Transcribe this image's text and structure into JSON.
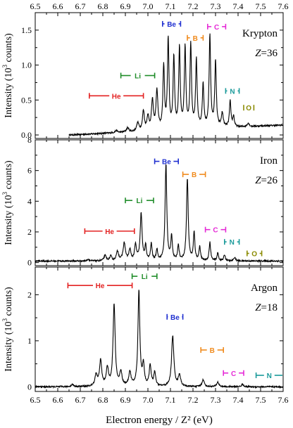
{
  "chart_data": {
    "type": "line",
    "xlabel": "Electron energy / Z² (eV)",
    "ylabel_parts": [
      "Intensity (10",
      "3",
      " counts)"
    ],
    "xlim": [
      6.5,
      7.6
    ],
    "x_ticks": [
      "6.5",
      "6.6",
      "6.7",
      "6.8",
      "6.9",
      "7.0",
      "7.1",
      "7.2",
      "7.3",
      "7.4",
      "7.5",
      "7.6"
    ],
    "x_tick_values": [
      6.5,
      6.6,
      6.7,
      6.8,
      6.9,
      7.0,
      7.1,
      7.2,
      7.3,
      7.4,
      7.5,
      7.6
    ],
    "colors": {
      "He": "#e32222",
      "Li": "#1e8c28",
      "Be": "#1f2fd0",
      "B": "#f08a1c",
      "C": "#e52ad6",
      "N": "#1a9a9a",
      "O": "#8a8a00",
      "line": "#000000"
    },
    "panels": [
      {
        "element": "Krypton",
        "z_label": "Z",
        "z_value": "=36",
        "ylim": [
          -0.05,
          1.75
        ],
        "y_ticks": [
          "0.0",
          "0.5",
          "1.0",
          "1.5"
        ],
        "y_tick_values": [
          0.0,
          0.5,
          1.0,
          1.5
        ],
        "data_start": 6.65,
        "baseline": 0.0,
        "peaks": [
          [
            6.86,
            0.03,
            0.006
          ],
          [
            6.91,
            0.06,
            0.006
          ],
          [
            6.955,
            0.12,
            0.006
          ],
          [
            6.98,
            0.28,
            0.005
          ],
          [
            7.0,
            0.2,
            0.005
          ],
          [
            7.02,
            0.42,
            0.005
          ],
          [
            7.04,
            0.55,
            0.005
          ],
          [
            7.07,
            0.9,
            0.004
          ],
          [
            7.09,
            1.28,
            0.004
          ],
          [
            7.115,
            1.02,
            0.004
          ],
          [
            7.14,
            1.15,
            0.004
          ],
          [
            7.165,
            1.15,
            0.004
          ],
          [
            7.19,
            1.18,
            0.004
          ],
          [
            7.215,
            0.98,
            0.004
          ],
          [
            7.245,
            0.62,
            0.004
          ],
          [
            7.275,
            1.32,
            0.004
          ],
          [
            7.3,
            0.95,
            0.004
          ],
          [
            7.33,
            0.2,
            0.005
          ],
          [
            7.365,
            0.37,
            0.004
          ],
          [
            7.38,
            0.15,
            0.004
          ],
          [
            7.445,
            0.05,
            0.005
          ]
        ],
        "ranges": [
          {
            "label": "He",
            "c": "He",
            "x1": 6.74,
            "x2": 6.98,
            "y": 0.56
          },
          {
            "label": "Li",
            "c": "Li",
            "x1": 6.88,
            "x2": 7.03,
            "y": 0.85
          },
          {
            "label": "Be",
            "c": "Be",
            "x1": 7.065,
            "x2": 7.145,
            "y": 1.59
          },
          {
            "label": "B",
            "c": "B",
            "x1": 7.175,
            "x2": 7.245,
            "y": 1.39
          },
          {
            "label": "C",
            "c": "C",
            "x1": 7.265,
            "x2": 7.345,
            "y": 1.55
          },
          {
            "label": "N",
            "c": "N",
            "x1": 7.345,
            "x2": 7.405,
            "y": 0.63
          },
          {
            "label": "O",
            "c": "O",
            "x1": 7.425,
            "x2": 7.47,
            "y": 0.39
          }
        ]
      },
      {
        "element": "Iron",
        "z_label": "Z",
        "z_value": "=26",
        "ylim": [
          -0.2,
          8.0
        ],
        "y_ticks": [
          "0",
          "2",
          "4",
          "6",
          "8"
        ],
        "y_tick_values": [
          0,
          2,
          4,
          6,
          8
        ],
        "data_start": 6.5,
        "baseline": 0.1,
        "peaks": [
          [
            6.735,
            0.12,
            0.005
          ],
          [
            6.81,
            0.35,
            0.006
          ],
          [
            6.835,
            0.3,
            0.005
          ],
          [
            6.865,
            0.6,
            0.006
          ],
          [
            6.895,
            1.15,
            0.006
          ],
          [
            6.92,
            0.7,
            0.005
          ],
          [
            6.945,
            1.0,
            0.005
          ],
          [
            6.97,
            3.05,
            0.005
          ],
          [
            6.99,
            0.9,
            0.004
          ],
          [
            7.015,
            1.1,
            0.004
          ],
          [
            7.04,
            0.7,
            0.004
          ],
          [
            7.08,
            6.3,
            0.0045
          ],
          [
            7.105,
            1.6,
            0.004
          ],
          [
            7.135,
            1.0,
            0.004
          ],
          [
            7.175,
            5.35,
            0.0045
          ],
          [
            7.205,
            1.8,
            0.004
          ],
          [
            7.23,
            0.9,
            0.004
          ],
          [
            7.275,
            1.2,
            0.004
          ],
          [
            7.31,
            0.5,
            0.004
          ],
          [
            7.34,
            0.4,
            0.004
          ],
          [
            7.385,
            0.25,
            0.004
          ]
        ],
        "ranges": [
          {
            "label": "He",
            "c": "He",
            "x1": 6.72,
            "x2": 6.94,
            "y": 2.05
          },
          {
            "label": "Li",
            "c": "Li",
            "x1": 6.9,
            "x2": 7.025,
            "y": 4.05
          },
          {
            "label": "Be",
            "c": "Be",
            "x1": 7.03,
            "x2": 7.135,
            "y": 6.6
          },
          {
            "label": "B",
            "c": "B",
            "x1": 7.155,
            "x2": 7.255,
            "y": 5.75
          },
          {
            "label": "C",
            "c": "C",
            "x1": 7.255,
            "x2": 7.345,
            "y": 2.15
          },
          {
            "label": "N",
            "c": "N",
            "x1": 7.34,
            "x2": 7.405,
            "y": 1.35
          },
          {
            "label": "O",
            "c": "O",
            "x1": 7.44,
            "x2": 7.505,
            "y": 0.6
          }
        ]
      },
      {
        "element": "Argon",
        "z_label": "Z",
        "z_value": "=18",
        "ylim": [
          -0.1,
          2.6
        ],
        "y_ticks": [
          "0",
          "1",
          "2"
        ],
        "y_tick_values": [
          0,
          1,
          2
        ],
        "data_start": 6.5,
        "baseline": 0.0,
        "peaks": [
          [
            6.665,
            0.05,
            0.006
          ],
          [
            6.77,
            0.25,
            0.006
          ],
          [
            6.79,
            0.55,
            0.006
          ],
          [
            6.82,
            0.38,
            0.006
          ],
          [
            6.85,
            1.78,
            0.0055
          ],
          [
            6.88,
            0.3,
            0.006
          ],
          [
            6.92,
            0.3,
            0.006
          ],
          [
            6.96,
            2.07,
            0.005
          ],
          [
            6.98,
            0.45,
            0.005
          ],
          [
            7.01,
            0.45,
            0.005
          ],
          [
            7.03,
            0.3,
            0.005
          ],
          [
            7.11,
            1.1,
            0.006
          ],
          [
            7.14,
            0.25,
            0.006
          ],
          [
            7.245,
            0.15,
            0.006
          ],
          [
            7.31,
            0.1,
            0.006
          ],
          [
            7.42,
            0.05,
            0.006
          ]
        ],
        "ranges": [
          {
            "label": "He",
            "c": "He",
            "x1": 6.645,
            "x2": 6.93,
            "y": 2.2
          },
          {
            "label": "Li",
            "c": "Li",
            "x1": 6.93,
            "x2": 7.04,
            "y": 2.4
          },
          {
            "label": "Be",
            "c": "Be",
            "x1": 7.085,
            "x2": 7.155,
            "y": 1.52
          },
          {
            "label": "B",
            "c": "B",
            "x1": 7.235,
            "x2": 7.335,
            "y": 0.8
          },
          {
            "label": "C",
            "c": "C",
            "x1": 7.335,
            "x2": 7.425,
            "y": 0.3
          },
          {
            "label": "N",
            "c": "N",
            "x1": 7.48,
            "x2": 7.6,
            "y": 0.25
          }
        ]
      }
    ]
  }
}
